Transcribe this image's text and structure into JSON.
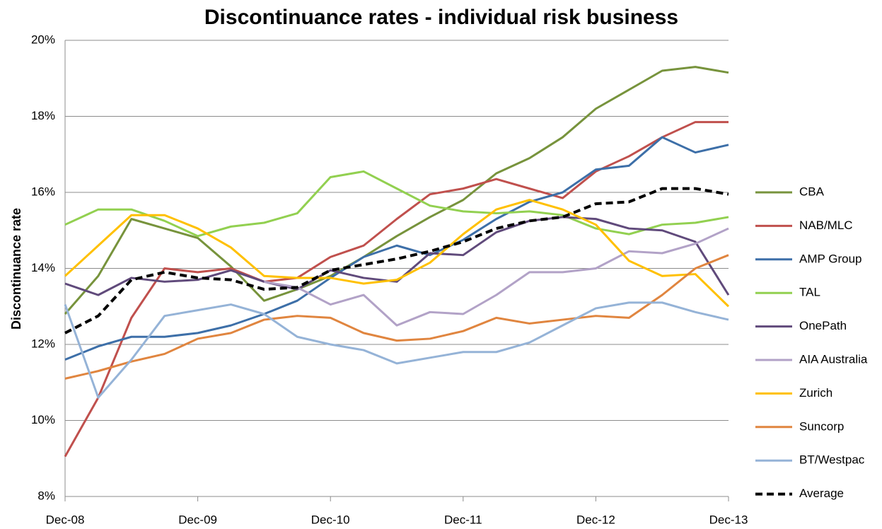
{
  "chart_data": {
    "type": "line",
    "title": "Discontinuance rates - individual risk business",
    "y_label": "Discontinuance rate",
    "categories": [
      "Dec-08",
      null,
      null,
      null,
      "Dec-09",
      null,
      null,
      null,
      "Dec-10",
      null,
      null,
      null,
      "Dec-11",
      null,
      null,
      null,
      "Dec-12",
      null,
      null,
      null,
      "Dec-13"
    ],
    "ylim": [
      8,
      20
    ],
    "yticks": [
      {
        "value": 8,
        "label": "8%"
      },
      {
        "value": 10,
        "label": "10%"
      },
      {
        "value": 12,
        "label": "12%"
      },
      {
        "value": 14,
        "label": "14%"
      },
      {
        "value": 16,
        "label": "16%"
      },
      {
        "value": 18,
        "label": "18%"
      },
      {
        "value": 20,
        "label": "20%"
      }
    ],
    "grid": true,
    "legend": "right",
    "series": [
      {
        "name": "CBA",
        "color": "#77933c",
        "values": [
          12.8,
          13.8,
          15.3,
          15.05,
          14.8,
          14.05,
          13.15,
          13.45,
          13.8,
          14.3,
          14.85,
          15.35,
          15.8,
          16.5,
          16.9,
          17.45,
          18.2,
          18.7,
          19.2,
          19.3,
          19.15
        ]
      },
      {
        "name": "NAB/MLC",
        "color": "#c0504d",
        "values": [
          9.05,
          10.6,
          12.7,
          14.0,
          13.9,
          14.0,
          13.65,
          13.75,
          14.3,
          14.6,
          15.3,
          15.95,
          16.1,
          16.35,
          16.1,
          15.85,
          16.55,
          16.95,
          17.45,
          17.85,
          17.85
        ]
      },
      {
        "name": "AMP Group",
        "color": "#3d6fa8",
        "values": [
          11.6,
          11.95,
          12.2,
          12.2,
          12.3,
          12.5,
          12.8,
          13.15,
          13.75,
          14.3,
          14.6,
          14.35,
          14.75,
          15.3,
          15.75,
          16.0,
          16.6,
          16.7,
          17.45,
          17.05,
          17.25
        ]
      },
      {
        "name": "TAL",
        "color": "#92d050",
        "values": [
          15.15,
          15.55,
          15.55,
          15.25,
          14.85,
          15.1,
          15.2,
          15.45,
          16.4,
          16.55,
          16.1,
          15.65,
          15.5,
          15.45,
          15.5,
          15.4,
          15.05,
          14.9,
          15.15,
          15.2,
          15.35
        ]
      },
      {
        "name": "OnePath",
        "color": "#604a7b",
        "values": [
          13.6,
          13.3,
          13.75,
          13.65,
          13.7,
          13.95,
          13.65,
          13.45,
          13.95,
          13.75,
          13.65,
          14.4,
          14.35,
          14.95,
          15.25,
          15.35,
          15.3,
          15.05,
          15.0,
          14.7,
          13.3
        ]
      },
      {
        "name": "AIA Australia",
        "color": "#b2a2c7",
        "values": [
          null,
          null,
          null,
          null,
          null,
          null,
          13.65,
          13.5,
          13.05,
          13.3,
          12.5,
          12.85,
          12.8,
          13.3,
          13.9,
          13.9,
          14.0,
          14.45,
          14.4,
          14.65,
          15.05
        ]
      },
      {
        "name": "Zurich",
        "color": "#ffc000",
        "values": [
          13.8,
          14.6,
          15.4,
          15.4,
          15.05,
          14.55,
          13.8,
          13.75,
          13.75,
          13.6,
          13.7,
          14.15,
          14.9,
          15.55,
          15.8,
          15.55,
          15.15,
          14.2,
          13.8,
          13.85,
          13.0
        ]
      },
      {
        "name": "Suncorp",
        "color": "#e0853f",
        "values": [
          11.1,
          11.3,
          11.55,
          11.75,
          12.15,
          12.3,
          12.65,
          12.75,
          12.7,
          12.3,
          12.1,
          12.15,
          12.35,
          12.7,
          12.55,
          12.65,
          12.75,
          12.7,
          13.3,
          14.0,
          14.35
        ]
      },
      {
        "name": "BT/Westpac",
        "color": "#95b3d7",
        "values": [
          13.05,
          10.6,
          11.6,
          12.75,
          12.9,
          13.05,
          12.8,
          12.2,
          12.0,
          11.85,
          11.5,
          11.65,
          11.8,
          11.8,
          12.05,
          12.5,
          12.95,
          13.1,
          13.1,
          12.85,
          12.65
        ]
      },
      {
        "name": "Average",
        "color": "#000000",
        "dashed": true,
        "values": [
          12.3,
          12.75,
          13.7,
          13.9,
          13.75,
          13.7,
          13.45,
          13.5,
          13.95,
          14.1,
          14.25,
          14.45,
          14.7,
          15.05,
          15.25,
          15.35,
          15.7,
          15.75,
          16.1,
          16.1,
          15.95
        ]
      }
    ]
  }
}
